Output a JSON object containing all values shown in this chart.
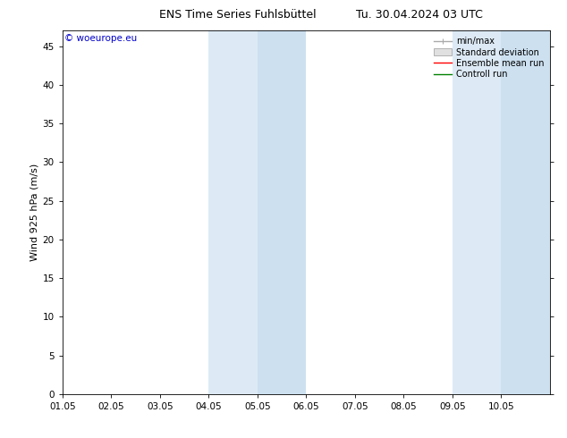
{
  "title_left": "ENS Time Series Fuhlsbüttel",
  "title_right": "Tu. 30.04.2024 03 UTC",
  "ylabel": "Wind 925 hPa (m/s)",
  "watermark": "© woeurope.eu",
  "xlim_start": 0.0,
  "xlim_end": 10.0,
  "ylim": [
    0,
    47
  ],
  "yticks": [
    0,
    5,
    10,
    15,
    20,
    25,
    30,
    35,
    40,
    45
  ],
  "xtick_labels": [
    "01.05",
    "02.05",
    "03.05",
    "04.05",
    "05.05",
    "06.05",
    "07.05",
    "08.05",
    "09.05",
    "10.05"
  ],
  "xtick_positions": [
    0,
    1,
    2,
    3,
    4,
    5,
    6,
    7,
    8,
    9
  ],
  "shaded_regions": [
    {
      "x_start": 3.0,
      "x_end": 4.0,
      "color": "#ddeaf5"
    },
    {
      "x_start": 4.0,
      "x_end": 5.0,
      "color": "#cce0f0"
    },
    {
      "x_start": 8.0,
      "x_end": 9.0,
      "color": "#ddeaf5"
    },
    {
      "x_start": 9.0,
      "x_end": 10.0,
      "color": "#cce0f0"
    }
  ],
  "bg_color": "#ffffff",
  "plot_bg_color": "#ffffff",
  "legend_labels": [
    "min/max",
    "Standard deviation",
    "Ensemble mean run",
    "Controll run"
  ],
  "legend_colors": [
    "#aaaaaa",
    "#cccccc",
    "#ff0000",
    "#008000"
  ],
  "watermark_color": "#0000cc",
  "title_fontsize": 9,
  "tick_fontsize": 7.5,
  "ylabel_fontsize": 8,
  "legend_fontsize": 7,
  "watermark_fontsize": 7.5
}
